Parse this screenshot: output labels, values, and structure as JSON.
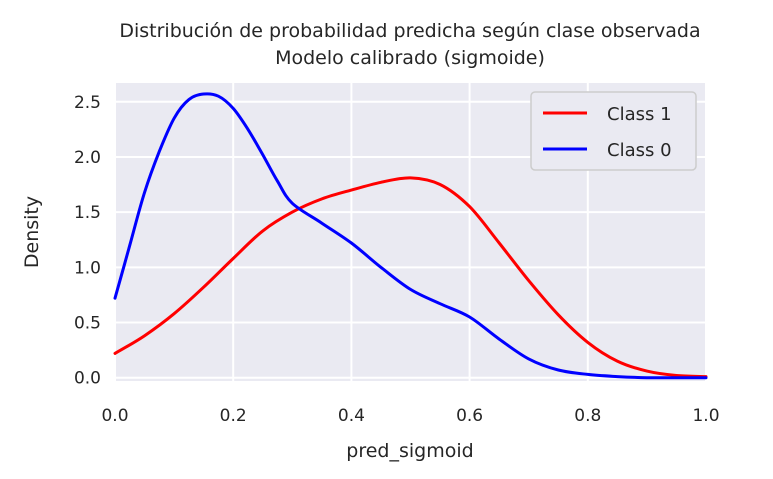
{
  "chart_data": {
    "type": "line",
    "title": "Distribución de probabilidad predicha según clase observada",
    "subtitle": "Modelo calibrado (sigmoide)",
    "xlabel": "pred_sigmoid",
    "ylabel": "Density",
    "xlim": [
      0.0,
      1.0
    ],
    "ylim": [
      -0.03,
      2.67
    ],
    "xticks": [
      "0.0",
      "0.2",
      "0.4",
      "0.6",
      "0.8",
      "1.0"
    ],
    "yticks": [
      "0.0",
      "0.5",
      "1.0",
      "1.5",
      "2.0",
      "2.5"
    ],
    "grid": true,
    "legend_position": "top-right",
    "series": [
      {
        "name": "Class 1",
        "color": "#ff0000",
        "x": [
          0.0,
          0.05,
          0.1,
          0.15,
          0.2,
          0.25,
          0.3,
          0.35,
          0.4,
          0.45,
          0.5,
          0.55,
          0.6,
          0.65,
          0.7,
          0.75,
          0.8,
          0.85,
          0.9,
          0.95,
          1.0
        ],
        "y": [
          0.22,
          0.38,
          0.58,
          0.82,
          1.08,
          1.33,
          1.5,
          1.62,
          1.7,
          1.77,
          1.81,
          1.75,
          1.55,
          1.22,
          0.88,
          0.57,
          0.32,
          0.15,
          0.06,
          0.02,
          0.01
        ]
      },
      {
        "name": "Class 0",
        "color": "#0000ff",
        "x": [
          0.0,
          0.025,
          0.05,
          0.075,
          0.1,
          0.125,
          0.15,
          0.175,
          0.2,
          0.225,
          0.25,
          0.275,
          0.3,
          0.35,
          0.4,
          0.45,
          0.5,
          0.55,
          0.6,
          0.65,
          0.7,
          0.75,
          0.8,
          0.85,
          0.9,
          0.95,
          1.0
        ],
        "y": [
          0.72,
          1.2,
          1.68,
          2.05,
          2.35,
          2.52,
          2.57,
          2.55,
          2.44,
          2.25,
          2.02,
          1.78,
          1.58,
          1.4,
          1.22,
          1.0,
          0.8,
          0.67,
          0.55,
          0.35,
          0.17,
          0.07,
          0.03,
          0.01,
          0.0,
          0.0,
          0.0
        ]
      }
    ]
  }
}
